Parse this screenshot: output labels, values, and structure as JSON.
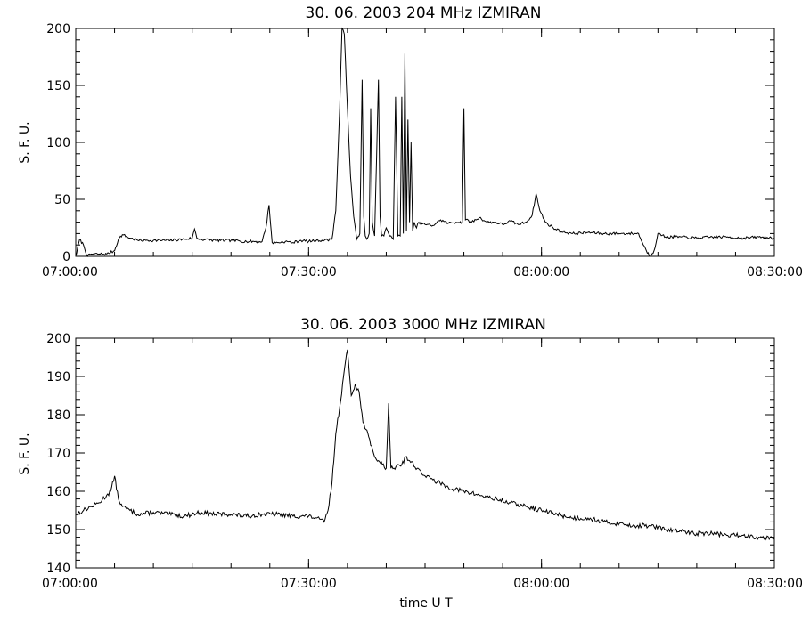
{
  "chart_data": [
    {
      "type": "line",
      "title": "30.  06.  2003    204 MHz    IZMIRAN",
      "xlabel": "",
      "ylabel": "S. F. U.",
      "x_tick_labels": [
        "07:00:00",
        "07:30:00",
        "08:00:00",
        "08:30:00"
      ],
      "x_tick_minutes": [
        0,
        30,
        60,
        90
      ],
      "xlim_minutes": [
        0,
        90
      ],
      "ylim": [
        0,
        200
      ],
      "y_ticks": [
        0,
        50,
        100,
        150,
        200
      ],
      "grid": false,
      "series": [
        {
          "x_minutes": [
            0,
            0.5,
            1,
            1.5,
            2,
            3,
            4,
            5,
            5.5,
            6,
            7,
            8,
            9,
            10,
            12,
            14,
            15,
            15.3,
            15.6,
            16,
            18,
            20,
            22,
            24,
            24.5,
            24.9,
            25.3,
            26,
            27,
            28,
            29,
            30,
            31,
            32,
            33,
            33.5,
            34,
            34.3,
            34.6,
            35,
            35.4,
            35.8,
            36.2,
            36.6,
            36.9,
            37.1,
            37.3,
            37.5,
            37.8,
            38,
            38.2,
            38.5,
            39,
            39.2,
            39.4,
            39.7,
            40,
            40.3,
            40.6,
            40.9,
            41.2,
            41.5,
            41.8,
            42,
            42.2,
            42.4,
            42.6,
            42.8,
            43,
            43.2,
            43.4,
            43.6,
            43.9,
            44.2,
            45,
            46,
            47,
            48,
            49,
            49.8,
            50,
            50.2,
            51,
            52,
            53,
            54,
            55,
            56,
            57,
            58,
            58.8,
            59.3,
            59.8,
            60.5,
            61.5,
            62.5,
            64,
            66,
            68,
            70,
            71,
            72,
            72.5,
            73,
            73.5,
            74,
            74.5,
            75,
            76,
            78,
            80,
            82,
            84,
            86,
            88,
            90
          ],
          "values": [
            0,
            15,
            10,
            0,
            2,
            2,
            2,
            5,
            15,
            19,
            16,
            14,
            14,
            14,
            14,
            15,
            16,
            24,
            16,
            15,
            14,
            14,
            13,
            13,
            25,
            45,
            12,
            12,
            13,
            12,
            14,
            13,
            14,
            14,
            15,
            40,
            130,
            200,
            195,
            130,
            70,
            35,
            15,
            20,
            155,
            35,
            18,
            15,
            20,
            130,
            30,
            18,
            155,
            35,
            18,
            18,
            25,
            20,
            18,
            15,
            140,
            18,
            18,
            140,
            20,
            178,
            22,
            120,
            30,
            100,
            22,
            30,
            25,
            30,
            28,
            27,
            32,
            29,
            30,
            30,
            130,
            32,
            30,
            34,
            30,
            30,
            28,
            31,
            28,
            30,
            36,
            55,
            40,
            30,
            25,
            22,
            20,
            21,
            20,
            20,
            20,
            20,
            20,
            12,
            5,
            0,
            5,
            20,
            17,
            17,
            16,
            17,
            17,
            16,
            17,
            16
          ]
        }
      ]
    },
    {
      "type": "line",
      "title": "30.  06.  2003    3000 MHz    IZMIRAN",
      "xlabel": "time   U T",
      "ylabel": "S. F. U.",
      "x_tick_labels": [
        "07:00:00",
        "07:30:00",
        "08:00:00",
        "08:30:00"
      ],
      "x_tick_minutes": [
        0,
        30,
        60,
        90
      ],
      "xlim_minutes": [
        0,
        90
      ],
      "ylim": [
        140,
        200
      ],
      "y_ticks": [
        140,
        150,
        160,
        170,
        180,
        190,
        200
      ],
      "grid": false,
      "series": [
        {
          "x_minutes": [
            0,
            1,
            2,
            3,
            4,
            4.5,
            5,
            5.5,
            6,
            7,
            8,
            10,
            12,
            14,
            16,
            18,
            20,
            22,
            24,
            26,
            28,
            30,
            31,
            32,
            32.5,
            33,
            33.5,
            34,
            34.5,
            35,
            35.5,
            36,
            36.5,
            37,
            37.5,
            38,
            38.5,
            39,
            39.5,
            40,
            40.3,
            40.6,
            41,
            41.5,
            42,
            42.5,
            43,
            44,
            45,
            46,
            48,
            50,
            52,
            54,
            56,
            58,
            60,
            62,
            64,
            66,
            68,
            70,
            72,
            74,
            76,
            78,
            80,
            82,
            84,
            86,
            88,
            90
          ],
          "values": [
            154,
            155,
            156,
            157,
            159,
            160,
            164,
            158,
            156,
            155,
            154,
            154.5,
            154,
            153.5,
            154.5,
            154,
            154,
            153.5,
            154,
            154,
            153.5,
            153.5,
            153,
            152,
            155,
            162,
            175,
            182,
            190,
            197,
            185,
            188,
            186,
            178,
            176,
            172,
            169,
            168,
            167,
            166,
            183,
            166,
            166,
            167,
            167,
            169,
            168,
            166,
            164,
            163,
            161,
            160,
            159,
            158,
            157,
            156,
            155,
            154,
            153,
            153,
            152,
            151.5,
            151,
            151,
            150,
            149.5,
            149,
            149,
            148.5,
            148.5,
            148,
            148
          ]
        }
      ]
    }
  ]
}
